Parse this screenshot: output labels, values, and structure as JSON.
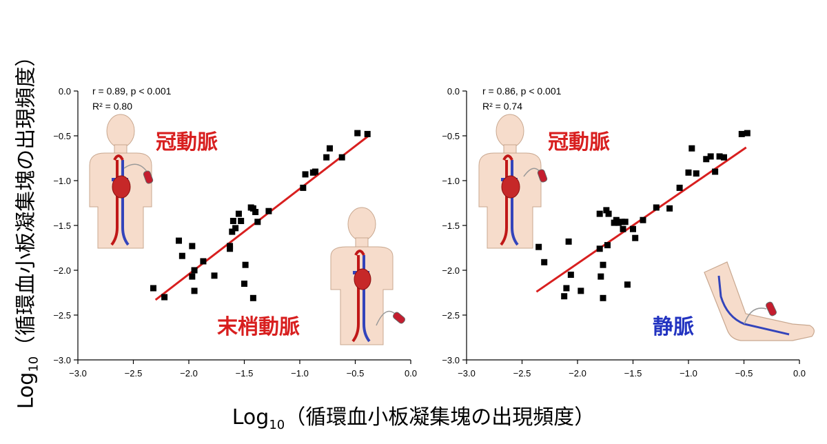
{
  "axis_titles": {
    "log": "Log",
    "sub": "10",
    "text": "（循環血小板凝集塊の出現頻度）"
  },
  "chart_data": [
    {
      "type": "scatter",
      "panel": "left",
      "stats": [
        "r = 0.89, p < 0.001",
        "R² = 0.80"
      ],
      "annotations": [
        {
          "text": "冠動脈",
          "color": "#d81f1f"
        },
        {
          "text": "末梢動脈",
          "color": "#d81f1f"
        }
      ],
      "xlabel": "Log10（循環血小板凝集塊の出現頻度）",
      "ylabel": "Log10（循環血小板凝集塊の出現頻度）",
      "xlim": [
        -3.0,
        0.0
      ],
      "ylim": [
        -3.0,
        0.0
      ],
      "xticks": [
        "−3.0",
        "−2.5",
        "−2.0",
        "−1.5",
        "−1.0",
        "−0.5",
        "0.0"
      ],
      "yticks": [
        "0.0",
        "−0.5",
        "−1.0",
        "−1.5",
        "−2.0",
        "−2.5",
        "−3.0"
      ],
      "points": [
        [
          -2.32,
          -2.2
        ],
        [
          -2.22,
          -2.3
        ],
        [
          -2.09,
          -1.67
        ],
        [
          -2.06,
          -1.84
        ],
        [
          -1.97,
          -1.73
        ],
        [
          -1.97,
          -2.07
        ],
        [
          -1.95,
          -2.23
        ],
        [
          -1.95,
          -2.0
        ],
        [
          -1.87,
          -1.9
        ],
        [
          -1.77,
          -2.06
        ],
        [
          -1.63,
          -1.73
        ],
        [
          -1.63,
          -1.76
        ],
        [
          -1.61,
          -1.57
        ],
        [
          -1.6,
          -1.45
        ],
        [
          -1.58,
          -1.53
        ],
        [
          -1.55,
          -1.37
        ],
        [
          -1.53,
          -1.45
        ],
        [
          -1.5,
          -2.15
        ],
        [
          -1.49,
          -1.94
        ],
        [
          -1.44,
          -1.3
        ],
        [
          -1.42,
          -1.31
        ],
        [
          -1.42,
          -2.31
        ],
        [
          -1.4,
          -1.35
        ],
        [
          -1.38,
          -1.46
        ],
        [
          -1.28,
          -1.34
        ],
        [
          -0.97,
          -1.08
        ],
        [
          -0.95,
          -0.93
        ],
        [
          -0.88,
          -0.91
        ],
        [
          -0.86,
          -0.9
        ],
        [
          -0.76,
          -0.74
        ],
        [
          -0.73,
          -0.64
        ],
        [
          -0.62,
          -0.74
        ],
        [
          -0.48,
          -0.47
        ],
        [
          -0.39,
          -0.48
        ]
      ],
      "fit": {
        "x": [
          -2.3,
          -0.38
        ],
        "y": [
          -2.33,
          -0.5
        ],
        "color": "#d81f1f"
      },
      "marker_color": "#000000",
      "grid": false
    },
    {
      "type": "scatter",
      "panel": "right",
      "stats": [
        "r = 0.86, p < 0.001",
        "R² = 0.74"
      ],
      "annotations": [
        {
          "text": "冠動脈",
          "color": "#d81f1f"
        },
        {
          "text": "静脈",
          "color": "#2233c0"
        }
      ],
      "xlabel": "Log10（循環血小板凝集塊の出現頻度）",
      "ylabel": "Log10（循環血小板凝集塊の出現頻度）",
      "xlim": [
        -3.0,
        0.0
      ],
      "ylim": [
        -3.0,
        0.0
      ],
      "xticks": [
        "−3.0",
        "−2.5",
        "−2.0",
        "−1.5",
        "−1.0",
        "−0.5",
        "0.0"
      ],
      "yticks": [
        "0.0",
        "−0.5",
        "−1.0",
        "−1.5",
        "−2.0",
        "−2.5",
        "−3.0"
      ],
      "points": [
        [
          -2.35,
          -1.74
        ],
        [
          -2.3,
          -1.91
        ],
        [
          -2.12,
          -2.29
        ],
        [
          -2.1,
          -2.2
        ],
        [
          -2.08,
          -1.68
        ],
        [
          -2.06,
          -2.05
        ],
        [
          -1.97,
          -2.23
        ],
        [
          -1.8,
          -1.37
        ],
        [
          -1.8,
          -1.76
        ],
        [
          -1.79,
          -2.07
        ],
        [
          -1.77,
          -1.94
        ],
        [
          -1.77,
          -2.31
        ],
        [
          -1.74,
          -1.33
        ],
        [
          -1.73,
          -1.72
        ],
        [
          -1.72,
          -1.37
        ],
        [
          -1.67,
          -1.47
        ],
        [
          -1.65,
          -1.44
        ],
        [
          -1.63,
          -1.47
        ],
        [
          -1.6,
          -1.46
        ],
        [
          -1.59,
          -1.54
        ],
        [
          -1.57,
          -1.46
        ],
        [
          -1.55,
          -2.16
        ],
        [
          -1.5,
          -1.54
        ],
        [
          -1.48,
          -1.64
        ],
        [
          -1.41,
          -1.44
        ],
        [
          -1.29,
          -1.3
        ],
        [
          -1.17,
          -1.31
        ],
        [
          -1.08,
          -1.08
        ],
        [
          -1.0,
          -0.91
        ],
        [
          -0.97,
          -0.64
        ],
        [
          -0.93,
          -0.92
        ],
        [
          -0.84,
          -0.76
        ],
        [
          -0.8,
          -0.73
        ],
        [
          -0.76,
          -0.9
        ],
        [
          -0.72,
          -0.73
        ],
        [
          -0.68,
          -0.74
        ],
        [
          -0.52,
          -0.48
        ],
        [
          -0.47,
          -0.47
        ]
      ],
      "fit": {
        "x": [
          -2.37,
          -0.48
        ],
        "y": [
          -2.24,
          -0.63
        ],
        "color": "#d81f1f"
      },
      "marker_color": "#000000",
      "grid": false
    }
  ]
}
